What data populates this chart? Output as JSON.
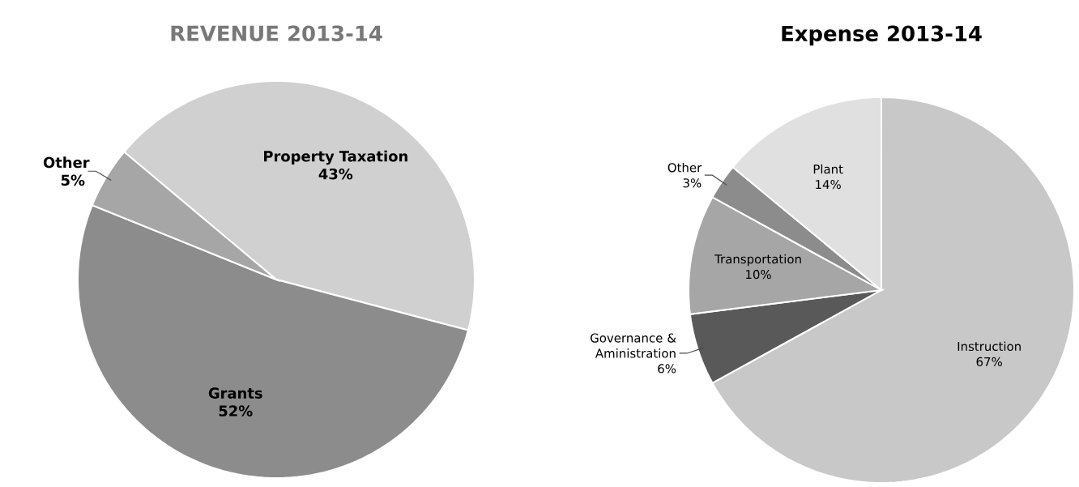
{
  "chart_data": [
    {
      "type": "pie",
      "title": "REVENUE 2013-14",
      "categories": [
        "Property Taxation",
        "Grants",
        "Other"
      ],
      "values": [
        43,
        52,
        5
      ],
      "value_labels": [
        "43%",
        "52%",
        "5%"
      ],
      "colors": [
        "#d0d0d0",
        "#8c8c8c",
        "#a6a6a6"
      ]
    },
    {
      "type": "pie",
      "title": "Expense 2013-14",
      "categories": [
        "Instruction",
        "Governance & Aministration",
        "Transportation",
        "Other",
        "Plant"
      ],
      "values": [
        67,
        6,
        10,
        3,
        14
      ],
      "value_labels": [
        "67%",
        "6%",
        "10%",
        "3%",
        "14%"
      ],
      "colors": [
        "#c8c8c8",
        "#595959",
        "#a6a6a6",
        "#8c8c8c",
        "#e0e0e0"
      ]
    }
  ]
}
